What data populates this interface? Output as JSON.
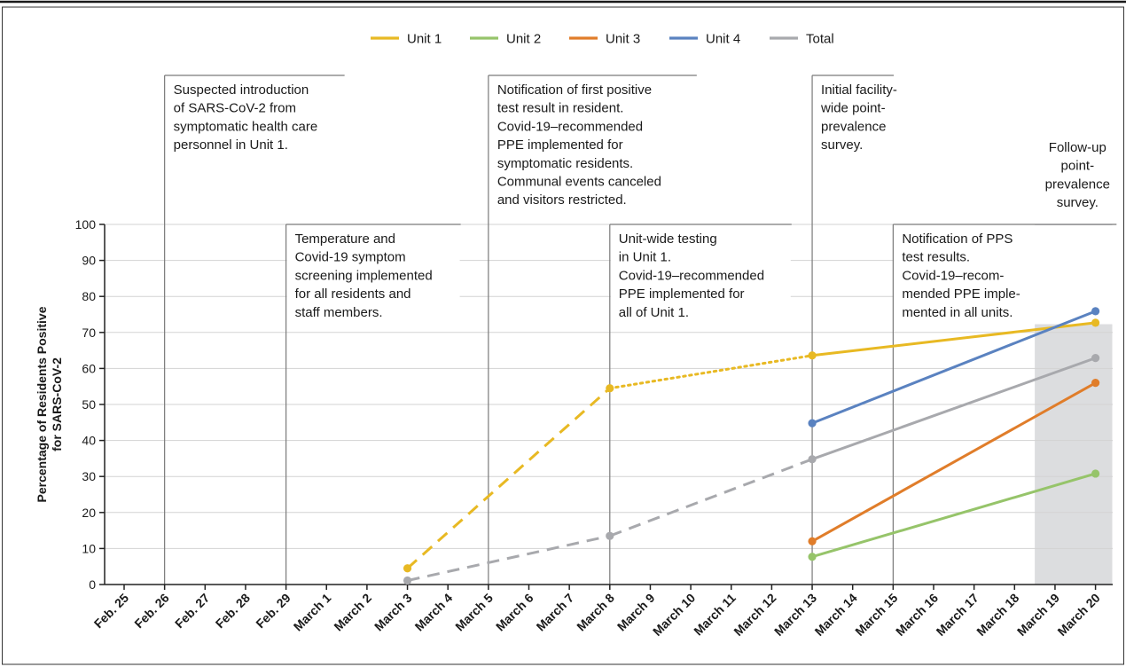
{
  "chart_data": {
    "type": "line",
    "ylabel": [
      "Percentage of Residents Positive",
      "for SARS-CoV-2"
    ],
    "xlabel": "",
    "ylim": [
      0,
      100
    ],
    "yticks": [
      0,
      10,
      20,
      30,
      40,
      50,
      60,
      70,
      80,
      90,
      100
    ],
    "categories": [
      "Feb. 25",
      "Feb. 26",
      "Feb. 27",
      "Feb. 28",
      "Feb. 29",
      "March 1",
      "March 2",
      "March 3",
      "March 4",
      "March 5",
      "March 6",
      "March 7",
      "March 8",
      "March 9",
      "March 10",
      "March 11",
      "March 12",
      "March 13",
      "March 14",
      "March 15",
      "March 16",
      "March 17",
      "March 18",
      "March 19",
      "March 20"
    ],
    "legend": {
      "position": "top-center"
    },
    "grid": {
      "horizontal": true
    },
    "shaded_region": {
      "from": "March 19",
      "to": "March 20",
      "color": "#dcdddf"
    },
    "series": [
      {
        "name": "Unit 1",
        "color": "#e8b923",
        "points": [
          {
            "x": "March 3",
            "y": 4.5
          },
          {
            "x": "March 8",
            "y": 54.5
          },
          {
            "x": "March 13",
            "y": 63.6
          },
          {
            "x": "March 20",
            "y": 72.7
          }
        ],
        "segment_styles": [
          "dashed",
          "dotted",
          "solid"
        ]
      },
      {
        "name": "Unit 2",
        "color": "#96c46a",
        "points": [
          {
            "x": "March 13",
            "y": 7.7
          },
          {
            "x": "March 20",
            "y": 30.8
          }
        ],
        "segment_styles": [
          "solid"
        ]
      },
      {
        "name": "Unit 3",
        "color": "#e07d2a",
        "points": [
          {
            "x": "March 13",
            "y": 12.0
          },
          {
            "x": "March 20",
            "y": 56.0
          }
        ],
        "segment_styles": [
          "solid"
        ]
      },
      {
        "name": "Unit 4",
        "color": "#5a82c0",
        "points": [
          {
            "x": "March 13",
            "y": 44.8
          },
          {
            "x": "March 20",
            "y": 75.9
          }
        ],
        "segment_styles": [
          "solid"
        ]
      },
      {
        "name": "Total",
        "color": "#a8a9ad",
        "points": [
          {
            "x": "March 3",
            "y": 1.1
          },
          {
            "x": "March 8",
            "y": 13.5
          },
          {
            "x": "March 13",
            "y": 34.8
          },
          {
            "x": "March 20",
            "y": 62.9
          }
        ],
        "segment_styles": [
          "dashed",
          "dashed",
          "solid"
        ]
      }
    ],
    "annotations": [
      {
        "x": "Feb. 26",
        "row": "upper",
        "lines": [
          "Suspected introduction",
          "of SARS-CoV-2 from",
          "symptomatic health care",
          "personnel in Unit 1."
        ]
      },
      {
        "x": "Feb. 29",
        "row": "lower",
        "lines": [
          "Temperature and",
          "Covid-19 symptom",
          "screening implemented",
          "for all residents and",
          "staff members."
        ]
      },
      {
        "x": "March 5",
        "row": "upper",
        "lines": [
          "Notification of first positive",
          "test result in resident.",
          "Covid-19–recommended",
          "PPE implemented for",
          "symptomatic residents.",
          "Communal events canceled",
          "and visitors restricted."
        ]
      },
      {
        "x": "March 8",
        "row": "lower",
        "lines": [
          "Unit-wide testing",
          "in Unit 1.",
          "Covid-19–recommended",
          "PPE implemented for",
          "all of Unit 1."
        ]
      },
      {
        "x": "March 13",
        "row": "upper",
        "lines": [
          "Initial facility-",
          "wide point-",
          "prevalence",
          "survey."
        ]
      },
      {
        "x": "March 15",
        "row": "lower",
        "lines": [
          "Notification of PPS",
          "test results.",
          "Covid-19–recom-",
          "mended PPE imple-",
          "mented in all units."
        ]
      },
      {
        "x": "March 19",
        "row": "shade",
        "lines": [
          "Follow-up",
          "point-",
          "prevalence",
          "survey."
        ]
      }
    ]
  }
}
